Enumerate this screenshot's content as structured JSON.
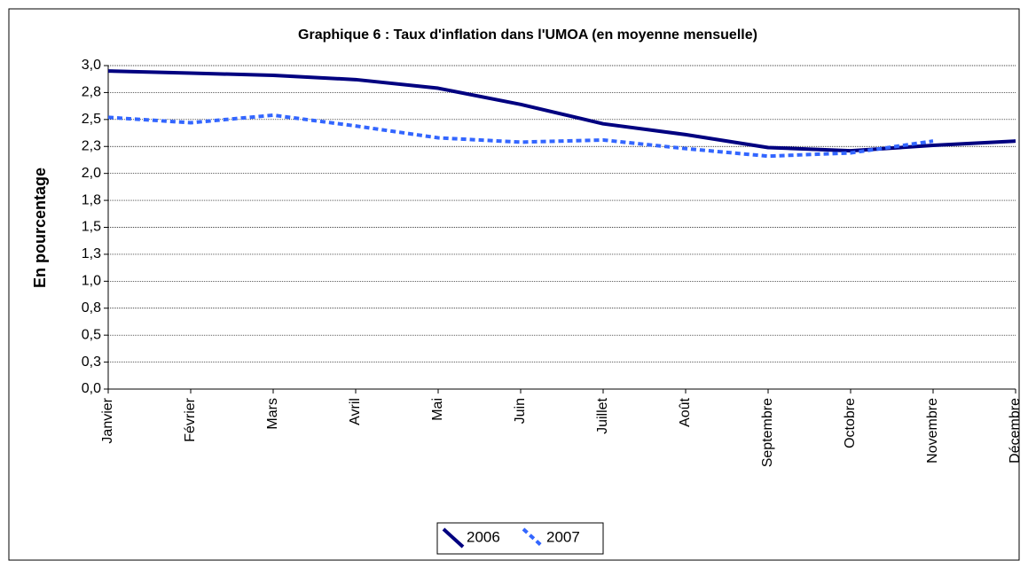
{
  "chart_data": {
    "type": "line",
    "title": "Graphique 6 : Taux d'inflation dans l'UMOA (en moyenne mensuelle)",
    "y_label": "En pourcentage",
    "categories": [
      "Janvier",
      "Février",
      "Mars",
      "Avril",
      "Mai",
      "Juin",
      "Juillet",
      "Août",
      "Septembre",
      "Octobre",
      "Novembre",
      "Décembre"
    ],
    "series": [
      {
        "name": "2006",
        "color": "#000080",
        "dashed": false,
        "values": [
          2.95,
          2.93,
          2.91,
          2.87,
          2.79,
          2.64,
          2.46,
          2.36,
          2.24,
          2.21,
          2.26,
          2.3
        ]
      },
      {
        "name": "2007",
        "color": "#3366ff",
        "dashed": true,
        "values": [
          2.52,
          2.47,
          2.54,
          2.44,
          2.33,
          2.29,
          2.31,
          2.23,
          2.16,
          2.19,
          2.3,
          null
        ]
      }
    ],
    "ylim": [
      0,
      3
    ],
    "yticks": [
      {
        "value": 0,
        "label": "0,0"
      },
      {
        "value": 0.25,
        "label": "0,3"
      },
      {
        "value": 0.5,
        "label": "0,5"
      },
      {
        "value": 0.75,
        "label": "0,8"
      },
      {
        "value": 1,
        "label": "1,0"
      },
      {
        "value": 1.25,
        "label": "1,3"
      },
      {
        "value": 1.5,
        "label": "1,5"
      },
      {
        "value": 1.75,
        "label": "1,8"
      },
      {
        "value": 2,
        "label": "2,0"
      },
      {
        "value": 2.25,
        "label": "2,3"
      },
      {
        "value": 2.5,
        "label": "2,5"
      },
      {
        "value": 2.75,
        "label": "2,8"
      },
      {
        "value": 3,
        "label": "3,0"
      }
    ],
    "grid": true,
    "legend": "bottom"
  }
}
